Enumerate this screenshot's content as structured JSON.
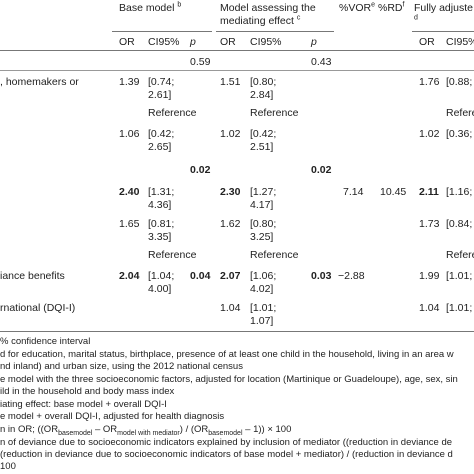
{
  "headers": {
    "base_model": "Base model",
    "base_sup": "b",
    "mediating": "Model assessing the mediating effect",
    "mediating_sup": "c",
    "vor": "%VOR",
    "vor_sup": "e",
    "rd": "%RD",
    "rd_sup": "f",
    "fully": "Fully adjuste",
    "fully_sup": "d",
    "or": "OR",
    "ci": "CI95%",
    "p": "p"
  },
  "rows": {
    "r0": {
      "p1": "0.59",
      "p2": "0.43"
    },
    "r1": {
      "label": ", homemakers or",
      "or1": "1.39",
      "ci1a": "[0.74;",
      "ci1b": "2.61]",
      "or2": "1.51",
      "ci2a": "[0.80;",
      "ci2b": "2.84]",
      "or3": "1.76",
      "ci3a": "[0.88;"
    },
    "r2": {
      "ref1": "Reference",
      "ref2": "Reference",
      "ref3": "Refere"
    },
    "r3": {
      "or1": "1.06",
      "ci1a": "[0.42;",
      "ci1b": "2.65]",
      "or2": "1.02",
      "ci2a": "[0.42;",
      "ci2b": "2.51]",
      "or3": "1.02",
      "ci3a": "[0.36;"
    },
    "r4": {
      "p1": "0.02",
      "p2": "0.02"
    },
    "r5": {
      "or1": "2.40",
      "ci1a": "[1.31;",
      "ci1b": "4.36]",
      "or2": "2.30",
      "ci2a": "[1.27;",
      "ci2b": "4.17]",
      "vor": "7.14",
      "rd": "10.45",
      "or3": "2.11",
      "ci3a": "[1.16;"
    },
    "r6": {
      "or1": "1.65",
      "ci1a": "[0.81;",
      "ci1b": "3.35]",
      "or2": "1.62",
      "ci2a": "[0.80;",
      "ci2b": "3.25]",
      "or3": "1.73",
      "ci3a": "[0.84;"
    },
    "r7": {
      "ref1": "Reference",
      "ref2": "Reference",
      "ref3": "Refere"
    },
    "r8": {
      "label": "iance benefits",
      "or1": "2.04",
      "ci1a": "[1.04;",
      "ci1b": "4.00]",
      "p1": "0.04",
      "or2": "2.07",
      "ci2a": "[1.06;",
      "ci2b": "4.02]",
      "p2": "0.03",
      "vor": "−2.88",
      "or3": "1.99",
      "ci3a": "[1.01;"
    },
    "r9": {
      "label": "rnational (DQI-I)",
      "or2": "1.04",
      "ci2a": "[1.01;",
      "ci2b": "1.07]",
      "or3": "1.04",
      "ci3a": "[1.01;"
    }
  },
  "footnotes": {
    "f1": "% confidence interval",
    "f2": "d for education, marital status, birthplace, presence of at least one child in the household, living in an area w",
    "f3": "nd inland) and urban size, using the 2012 national census",
    "f4": "e model with the three socioeconomic factors, adjusted for location (Martinique or Guadeloupe), age, sex, sin",
    "f5": "ild in the household and body mass index",
    "f6": "iating effect: base model + overall DQI-I",
    "f7": "e model + overall DQI-I, adjusted for health diagnosis",
    "f8a": "n in OR; ((OR",
    "f8s1": "basemodel",
    "f8b": " – OR",
    "f8s2": "model with mediator",
    "f8c": ") / (OR",
    "f8s3": "basemodel",
    "f8d": " – 1)) × 100",
    "f9": "n of deviance due to socioeconomic indicators explained by inclusion of mediator ((reduction in deviance de",
    "f10": "(reduction in deviance due to socioeconomic indicators of base model + mediator) / (reduction in deviance d",
    "f11": "100"
  }
}
